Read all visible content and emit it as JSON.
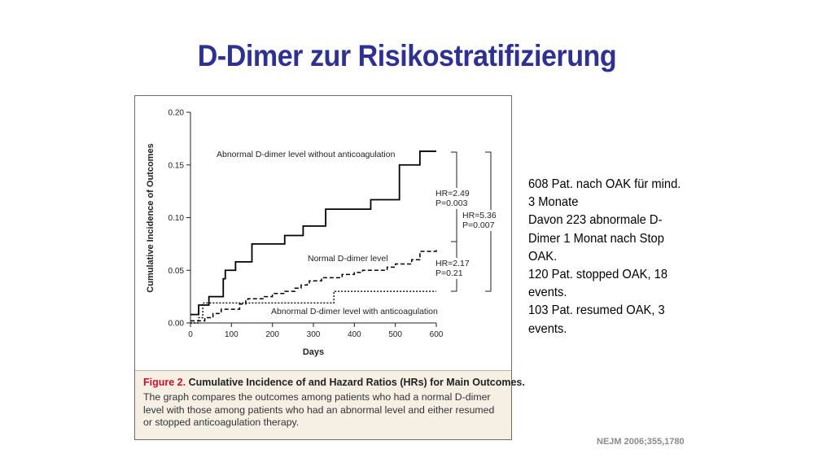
{
  "slide": {
    "title": "D-Dimer zur Risikostratifizierung",
    "notes": [
      "608 Pat. nach OAK für mind. 3 Monate",
      "Davon 223 abnormale D-Dimer 1 Monat nach Stop OAK.",
      "120 Pat. stopped OAK, 18 events.",
      "103 Pat. resumed OAK, 3 events."
    ],
    "source": "NEJM 2006;355,1780"
  },
  "figure": {
    "caption_label": "Figure 2.",
    "caption_title": "Cumulative Incidence of and Hazard Ratios (HRs) for Main Outcomes.",
    "caption_body": "The graph compares the outcomes among patients who had a normal D-dimer level with those among patients who had an abnormal level and either resumed or stopped anticoagulation therapy."
  },
  "chart_data": {
    "type": "line",
    "title": "",
    "xlabel": "Days",
    "ylabel": "Cumulative Incidence of Outcomes",
    "xlim": [
      0,
      600
    ],
    "ylim": [
      0,
      0.2
    ],
    "x_ticks": [
      0,
      100,
      200,
      300,
      400,
      500,
      600
    ],
    "x_tick_labels": [
      "0",
      "100",
      "200",
      "300",
      "400",
      "500",
      "600"
    ],
    "y_ticks": [
      0,
      0.05,
      0.1,
      0.15,
      0.2
    ],
    "y_tick_labels": [
      "0.00",
      "0.05",
      "0.10",
      "0.15",
      "0.20"
    ],
    "grid": false,
    "series": [
      {
        "name": "Abnormal D-dimer level without anticoagulation",
        "style": "solid",
        "color": "#000000",
        "x": [
          0,
          20,
          45,
          80,
          85,
          110,
          150,
          230,
          275,
          330,
          440,
          510,
          560,
          600
        ],
        "y": [
          0.008,
          0.017,
          0.025,
          0.042,
          0.05,
          0.058,
          0.075,
          0.083,
          0.092,
          0.108,
          0.117,
          0.15,
          0.163,
          0.163
        ]
      },
      {
        "name": "Normal D-dimer level",
        "style": "dashed",
        "color": "#000000",
        "x": [
          0,
          35,
          55,
          75,
          120,
          135,
          140,
          180,
          200,
          230,
          255,
          270,
          285,
          290,
          320,
          370,
          400,
          420,
          480,
          500,
          540,
          560,
          600
        ],
        "y": [
          0.002,
          0.005,
          0.009,
          0.013,
          0.018,
          0.021,
          0.023,
          0.025,
          0.028,
          0.03,
          0.033,
          0.036,
          0.038,
          0.04,
          0.043,
          0.046,
          0.048,
          0.05,
          0.053,
          0.056,
          0.06,
          0.068,
          0.07
        ]
      },
      {
        "name": "Abnormal D-dimer level with anticoagulation",
        "style": "dotted",
        "color": "#000000",
        "x": [
          0,
          20,
          30,
          325,
          350,
          600
        ],
        "y": [
          0,
          0.005,
          0.019,
          0.019,
          0.03,
          0.03
        ]
      }
    ],
    "annotations": [
      {
        "name": "hr-top",
        "lines": [
          "HR=2.49",
          "P=0.003"
        ]
      },
      {
        "name": "hr-outer",
        "lines": [
          "HR=5.36",
          "P=0.007"
        ]
      },
      {
        "name": "hr-bottom",
        "lines": [
          "HR=2.17",
          "P=0.21"
        ]
      }
    ]
  }
}
